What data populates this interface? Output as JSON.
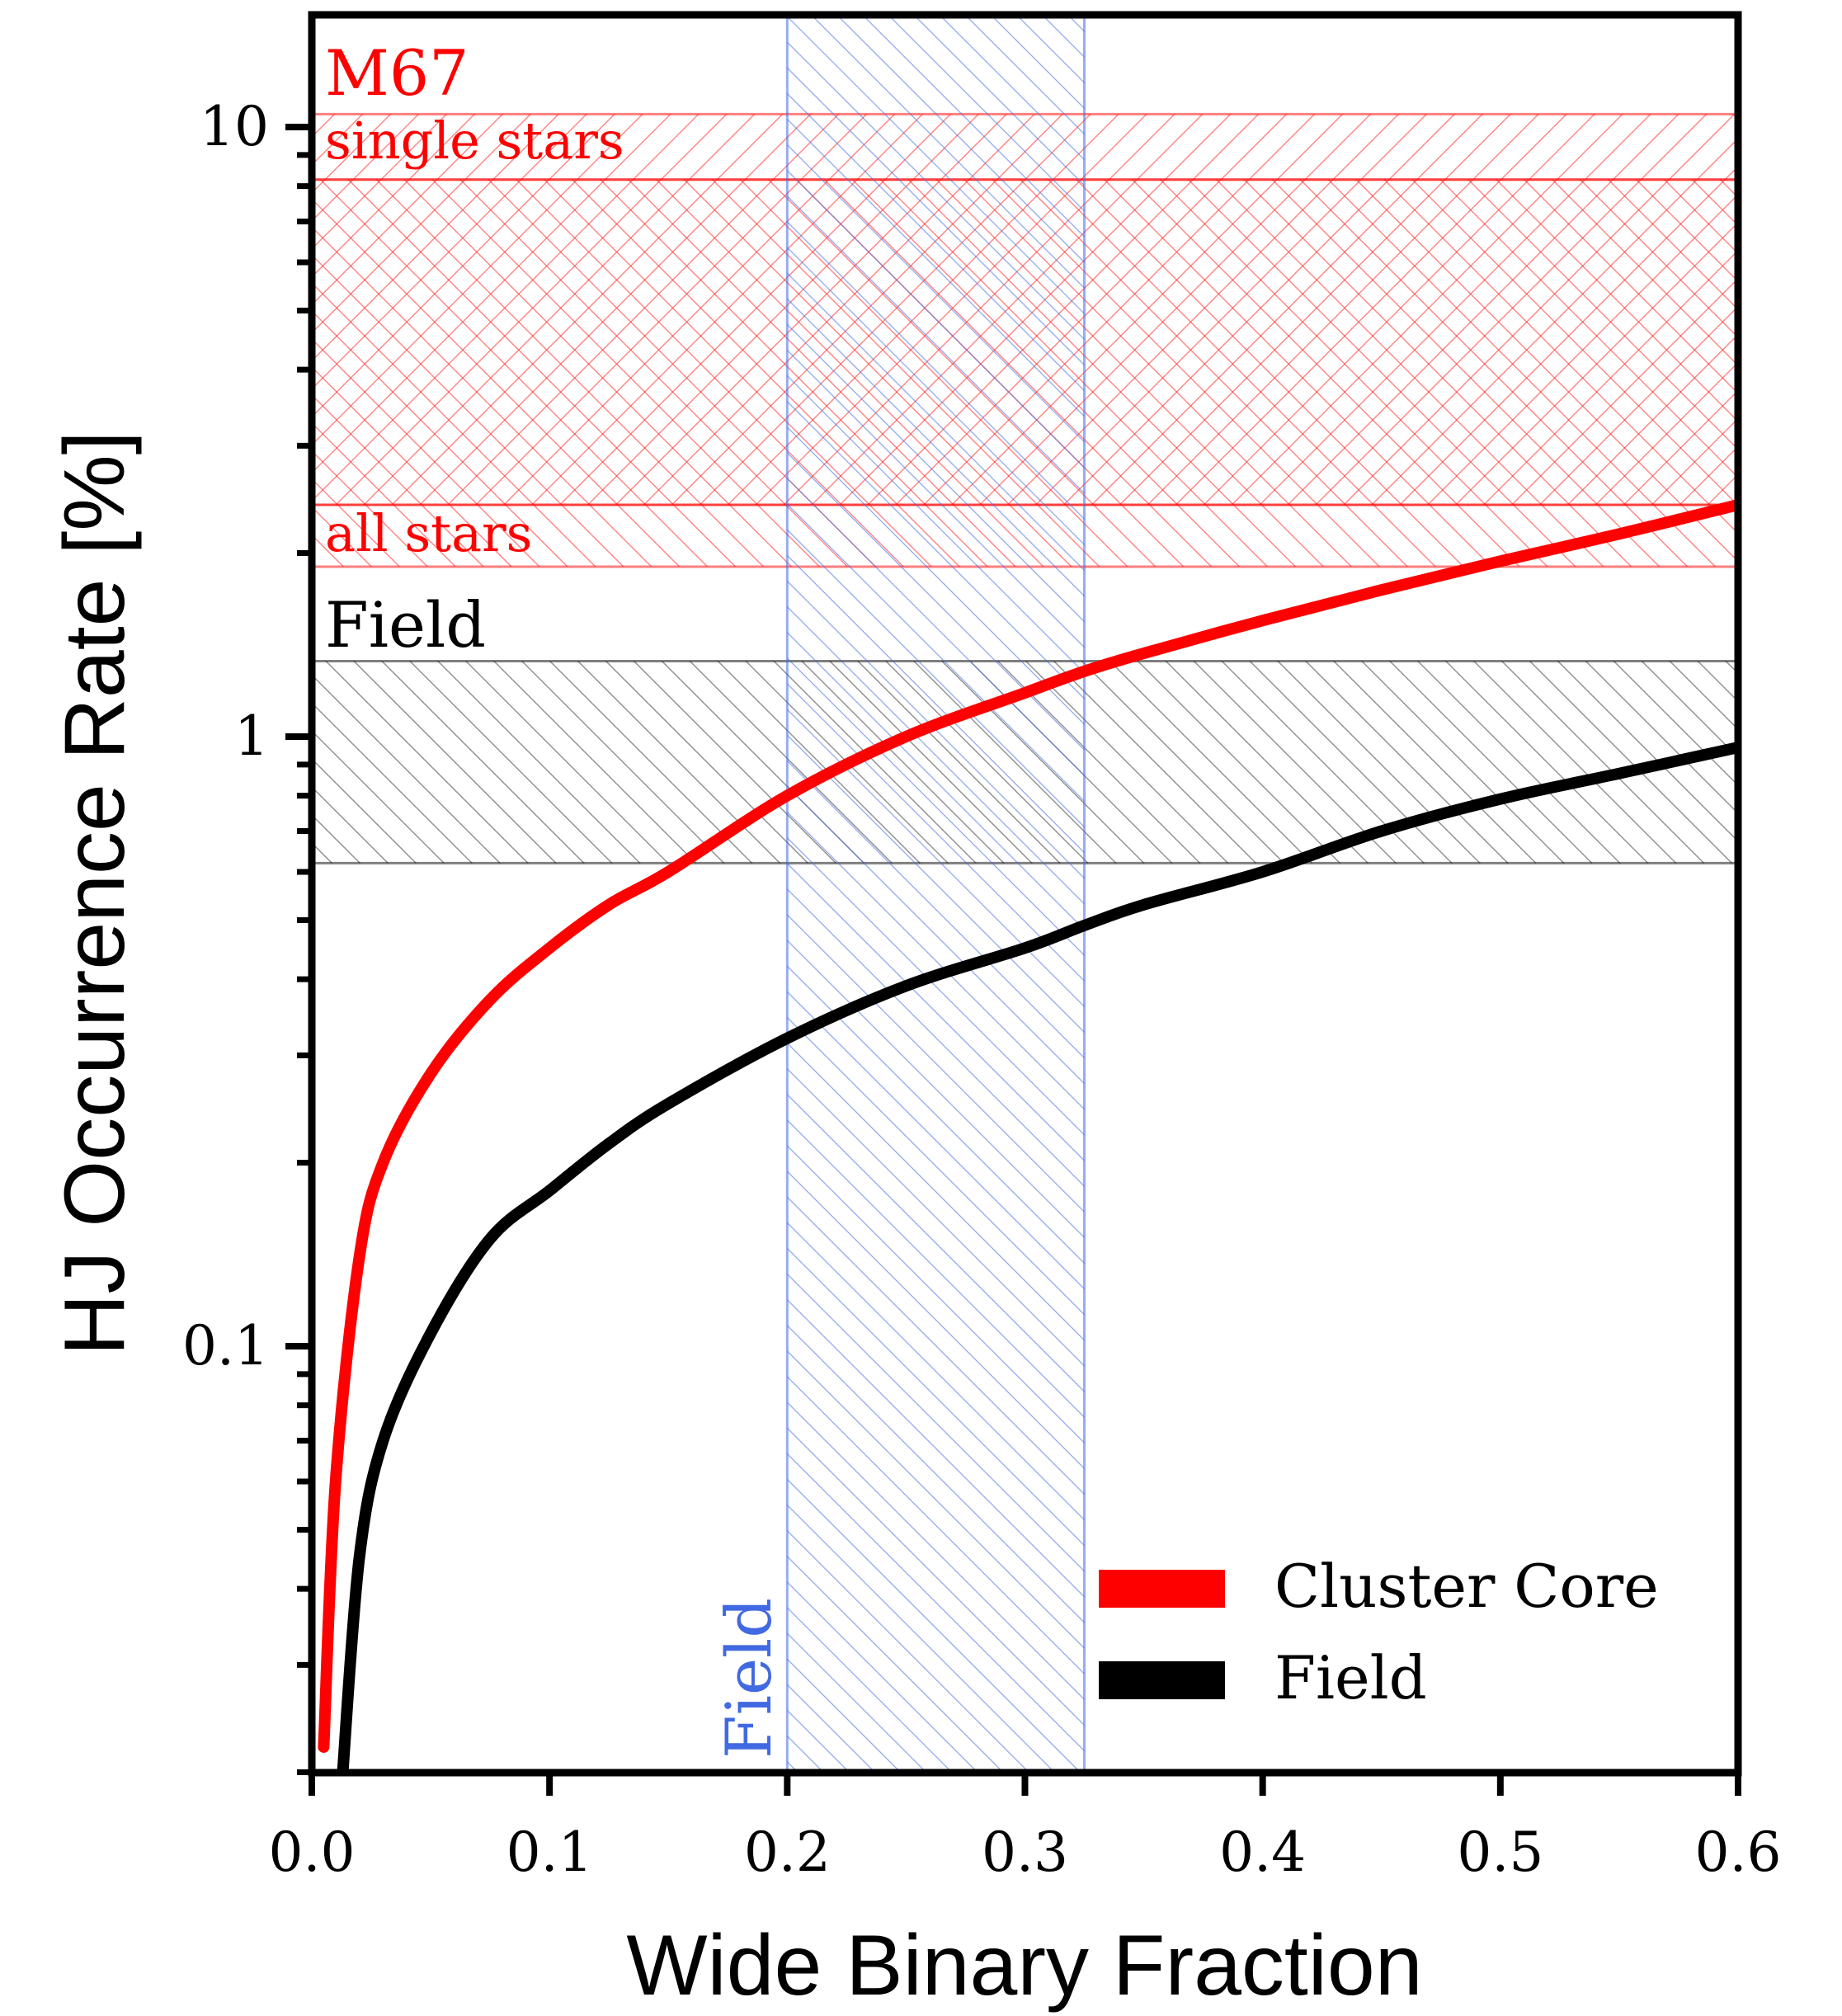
{
  "chart_data": {
    "type": "line",
    "xlabel": "Wide Binary Fraction",
    "ylabel": "HJ Occurrence Rate [%]",
    "xlim": [
      0.0,
      0.6
    ],
    "ylim": [
      0.02,
      15
    ],
    "yscale": "log",
    "grid": false,
    "x_ticks": [
      0.0,
      0.1,
      0.2,
      0.3,
      0.4,
      0.5,
      0.6
    ],
    "x_tick_labels": [
      "0.0",
      "0.1",
      "0.2",
      "0.3",
      "0.4",
      "0.5",
      "0.6"
    ],
    "y_ticks": [
      0.1,
      1,
      10
    ],
    "y_tick_labels": [
      "0.1",
      "1",
      "10"
    ],
    "legend_position": "bottom-right",
    "series": [
      {
        "name": "Cluster Core",
        "color": "#ff0000",
        "x": [
          0.005,
          0.01,
          0.02,
          0.03,
          0.05,
          0.075,
          0.1,
          0.125,
          0.15,
          0.2,
          0.25,
          0.3,
          0.325,
          0.35,
          0.4,
          0.45,
          0.5,
          0.55,
          0.6
        ],
        "y": [
          0.022,
          0.06,
          0.14,
          0.2,
          0.28,
          0.37,
          0.45,
          0.53,
          0.6,
          0.8,
          1.0,
          1.18,
          1.28,
          1.37,
          1.55,
          1.74,
          1.94,
          2.15,
          2.4
        ]
      },
      {
        "name": "Field",
        "color": "#000000",
        "x": [
          0.013,
          0.02,
          0.03,
          0.05,
          0.075,
          0.1,
          0.125,
          0.15,
          0.2,
          0.25,
          0.3,
          0.325,
          0.35,
          0.4,
          0.45,
          0.5,
          0.55,
          0.6
        ],
        "y": [
          0.02,
          0.045,
          0.07,
          0.105,
          0.15,
          0.18,
          0.215,
          0.25,
          0.32,
          0.39,
          0.45,
          0.49,
          0.53,
          0.6,
          0.7,
          0.79,
          0.87,
          0.96
        ]
      }
    ],
    "bands": [
      {
        "orientation": "horizontal",
        "label": "single stars",
        "y_range": [
          8.2,
          10.5
        ],
        "color": "#ff0000",
        "hatch": "backslash"
      },
      {
        "orientation": "horizontal",
        "label": "",
        "y_range": [
          2.4,
          8.2
        ],
        "color": "#ff0000",
        "hatch": "cross"
      },
      {
        "orientation": "horizontal",
        "label": "all stars",
        "y_range": [
          1.9,
          2.4
        ],
        "color": "#ff0000",
        "hatch": "slash"
      },
      {
        "orientation": "horizontal",
        "label": "Field",
        "y_range": [
          0.62,
          1.33
        ],
        "color": "#000000",
        "hatch": "slash"
      },
      {
        "orientation": "vertical",
        "label": "Field",
        "x_range": [
          0.2,
          0.325
        ],
        "color": "#4169e1",
        "hatch": "slash"
      }
    ],
    "annotations": [
      "M67",
      "single stars",
      "all stars",
      "Field",
      "Field"
    ]
  },
  "colors": {
    "cluster_red": "#ff0000",
    "field_black": "#000000",
    "field_blue": "#4169e1"
  }
}
